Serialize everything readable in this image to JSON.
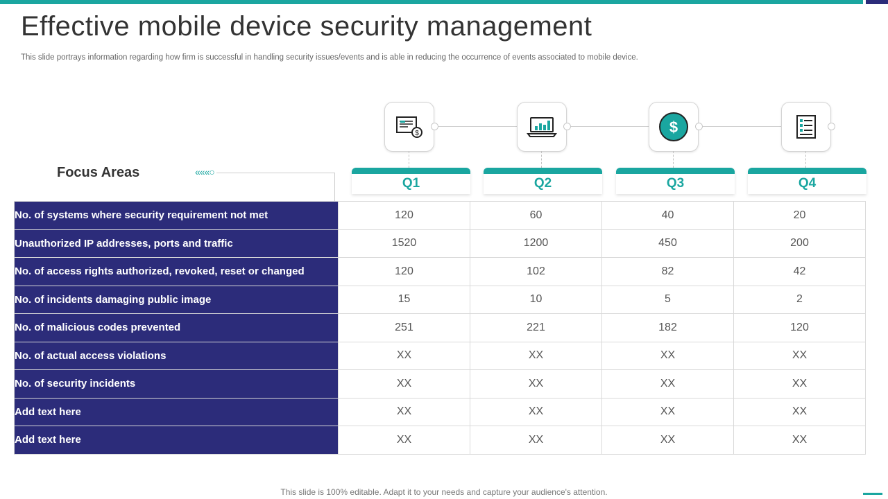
{
  "title": "Effective mobile device security management",
  "subtitle": "This slide portrays information regarding how firm is successful in handling security issues/events and is able in reducing the occurrence of events associated to mobile device.",
  "focus_areas_label": "Focus Areas",
  "focus_arrow": "«««○",
  "colors": {
    "teal": "#1aa6a0",
    "navy": "#2c2c7a",
    "text": "#333333"
  },
  "quarters": [
    {
      "label": "Q1",
      "icon": "certificate-dollar-icon"
    },
    {
      "label": "Q2",
      "icon": "laptop-chart-icon"
    },
    {
      "label": "Q3",
      "icon": "dollar-coin-icon"
    },
    {
      "label": "Q4",
      "icon": "document-list-icon"
    }
  ],
  "rows": [
    {
      "label": "No. of systems where security requirement not met",
      "values": [
        "120",
        "60",
        "40",
        "20"
      ]
    },
    {
      "label": "Unauthorized IP addresses, ports and traffic",
      "values": [
        "1520",
        "1200",
        "450",
        "200"
      ]
    },
    {
      "label": "No. of access rights authorized, revoked, reset or changed",
      "values": [
        "120",
        "102",
        "82",
        "42"
      ]
    },
    {
      "label": "No. of incidents damaging public image",
      "values": [
        "15",
        "10",
        "5",
        "2"
      ]
    },
    {
      "label": "No. of malicious codes prevented",
      "values": [
        "251",
        "221",
        "182",
        "120"
      ]
    },
    {
      "label": "No. of actual access  violations",
      "values": [
        "XX",
        "XX",
        "XX",
        "XX"
      ]
    },
    {
      "label": "No. of security incidents",
      "values": [
        "XX",
        "XX",
        "XX",
        "XX"
      ]
    },
    {
      "label": "Add text here",
      "values": [
        "XX",
        "XX",
        "XX",
        "XX"
      ]
    },
    {
      "label": "Add text here",
      "values": [
        "XX",
        "XX",
        "XX",
        "XX"
      ]
    }
  ],
  "footer": "This slide is 100% editable. Adapt it to your needs and capture your audience's attention."
}
